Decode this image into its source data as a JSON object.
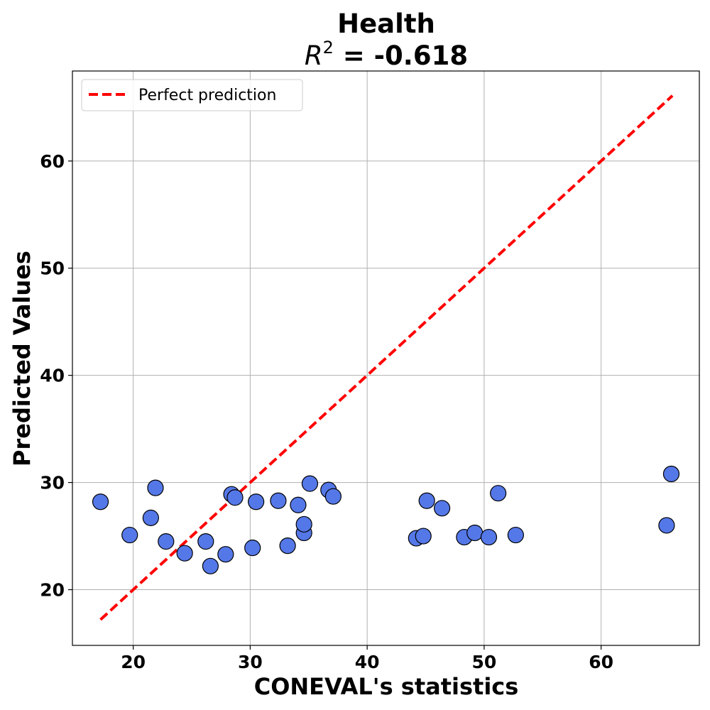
{
  "chart_data": {
    "type": "scatter",
    "title": "Health",
    "subtitle_var": "R",
    "subtitle_sup": "2",
    "subtitle_value": " = -0.618",
    "xlabel": "CONEVAL's statistics",
    "ylabel": "Predicted Values",
    "xlim": [
      14.8,
      68.4
    ],
    "ylim": [
      14.8,
      68.4
    ],
    "xticks": [
      20,
      30,
      40,
      50,
      60
    ],
    "yticks": [
      20,
      30,
      40,
      50,
      60
    ],
    "grid": true,
    "legend": {
      "placement": "top-left",
      "entries": [
        "Perfect prediction"
      ]
    },
    "reference_line": {
      "name": "Perfect prediction",
      "x": [
        17.2,
        66.1
      ],
      "y": [
        17.2,
        66.1
      ],
      "color": "#ff0000",
      "style": "dashed"
    },
    "series": [
      {
        "color": "#5578e8",
        "edge_color": "#000000",
        "points": [
          {
            "x": 17.2,
            "y": 28.2
          },
          {
            "x": 19.7,
            "y": 25.1
          },
          {
            "x": 21.5,
            "y": 26.7
          },
          {
            "x": 21.9,
            "y": 29.5
          },
          {
            "x": 22.8,
            "y": 24.5
          },
          {
            "x": 24.4,
            "y": 23.4
          },
          {
            "x": 26.2,
            "y": 24.5
          },
          {
            "x": 26.6,
            "y": 22.2
          },
          {
            "x": 27.9,
            "y": 23.3
          },
          {
            "x": 28.4,
            "y": 28.9
          },
          {
            "x": 28.7,
            "y": 28.6
          },
          {
            "x": 30.2,
            "y": 23.9
          },
          {
            "x": 30.5,
            "y": 28.2
          },
          {
            "x": 32.4,
            "y": 28.3
          },
          {
            "x": 33.2,
            "y": 24.1
          },
          {
            "x": 34.1,
            "y": 27.9
          },
          {
            "x": 34.6,
            "y": 25.3
          },
          {
            "x": 34.6,
            "y": 26.1
          },
          {
            "x": 35.1,
            "y": 29.9
          },
          {
            "x": 36.7,
            "y": 29.3
          },
          {
            "x": 37.1,
            "y": 28.7
          },
          {
            "x": 44.2,
            "y": 24.8
          },
          {
            "x": 44.8,
            "y": 25.0
          },
          {
            "x": 45.1,
            "y": 28.3
          },
          {
            "x": 46.4,
            "y": 27.6
          },
          {
            "x": 48.3,
            "y": 24.9
          },
          {
            "x": 49.2,
            "y": 25.3
          },
          {
            "x": 50.4,
            "y": 24.9
          },
          {
            "x": 51.2,
            "y": 29.0
          },
          {
            "x": 52.7,
            "y": 25.1
          },
          {
            "x": 65.6,
            "y": 26.0
          },
          {
            "x": 66.0,
            "y": 30.8
          }
        ]
      }
    ]
  }
}
